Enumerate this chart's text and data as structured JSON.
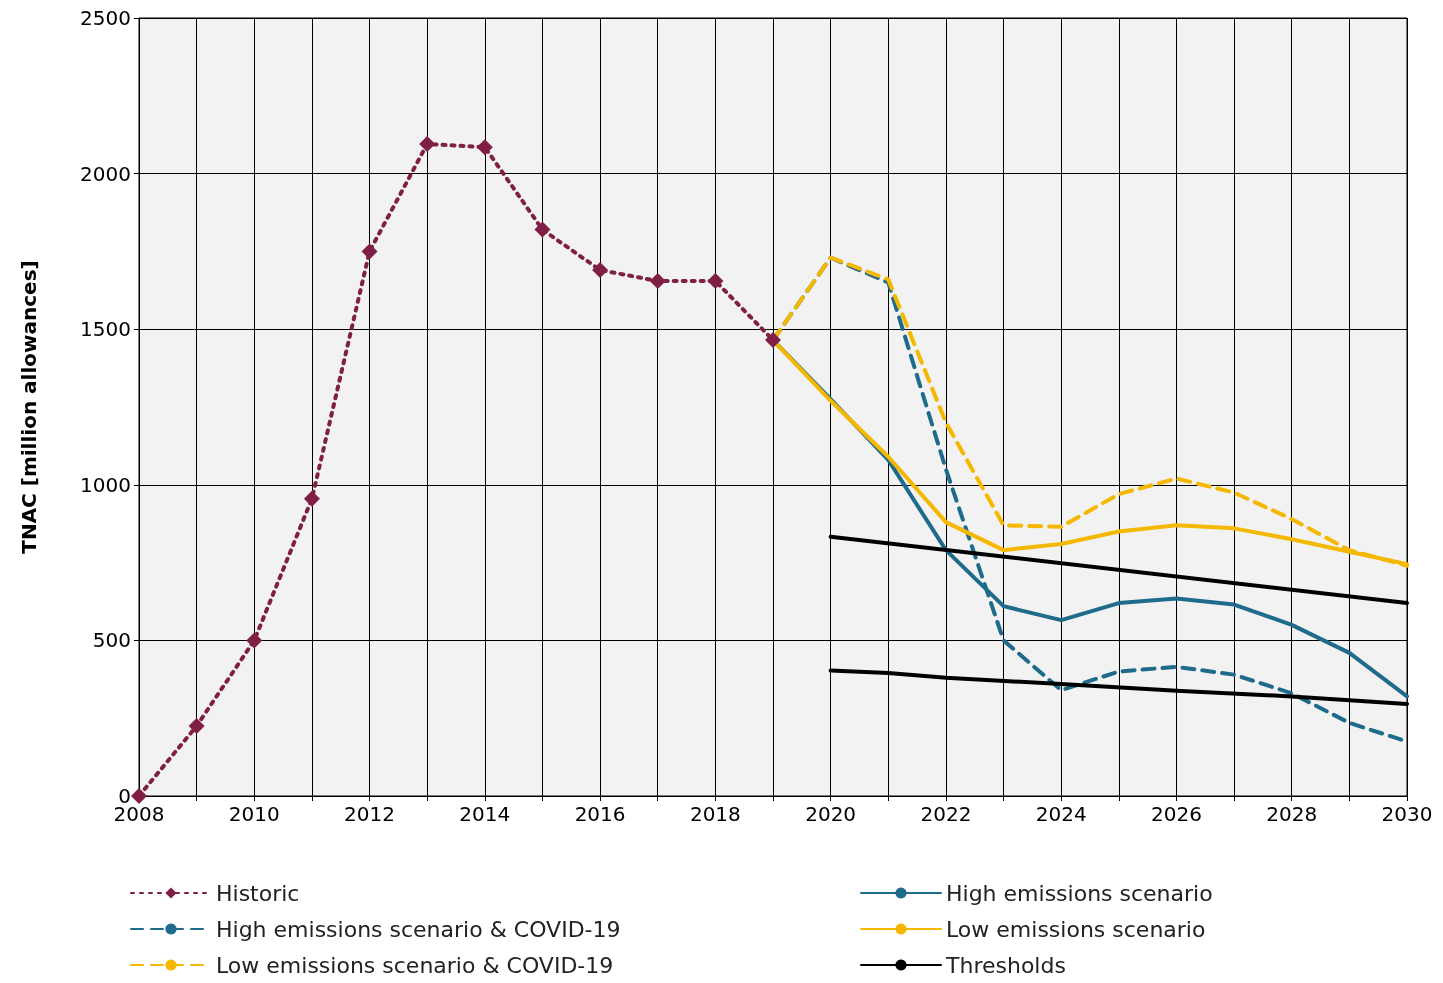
{
  "chart_data": {
    "type": "line",
    "ylabel": "TNAC [million allowances]",
    "xlim": [
      2008,
      2030
    ],
    "ylim": [
      0,
      2500
    ],
    "xticks": [
      2008,
      {
        "value": 2009,
        "label": null
      },
      2010,
      {
        "value": 2011,
        "label": null
      },
      2012,
      {
        "value": 2013,
        "label": null
      },
      2014,
      {
        "value": 2015,
        "label": null
      },
      2016,
      {
        "value": 2017,
        "label": null
      },
      2018,
      {
        "value": 2019,
        "label": null
      },
      2020,
      {
        "value": 2021,
        "label": null
      },
      2022,
      {
        "value": 2023,
        "label": null
      },
      2024,
      {
        "value": 2025,
        "label": null
      },
      2026,
      {
        "value": 2027,
        "label": null
      },
      2028,
      {
        "value": 2029,
        "label": null
      },
      2030
    ],
    "yticks": [
      0,
      500,
      1000,
      1500,
      2000,
      2500
    ],
    "grid": true,
    "legend": "bottom",
    "marker": "none",
    "line_style": "solid",
    "series": [
      {
        "name": "Historic",
        "color": "#7f1f45",
        "marker": "diamond",
        "line_style": "dotted",
        "x": [
          2008,
          2009,
          2010,
          2011,
          2012,
          2013,
          2014,
          2015,
          2016,
          2017,
          2018,
          2019
        ],
        "values": [
          0,
          225,
          500,
          955,
          1750,
          2095,
          2085,
          1820,
          1690,
          1655,
          1655,
          1465
        ]
      },
      {
        "name": "High emissions scenario",
        "color": "#1f6b8c",
        "x": [
          2019,
          2020,
          2021,
          2022,
          2023,
          2024,
          2025,
          2026,
          2027,
          2028,
          2029,
          2030
        ],
        "values": [
          1465,
          1275,
          1080,
          790,
          610,
          565,
          620,
          635,
          615,
          550,
          460,
          320
        ]
      },
      {
        "name": "High emissions scenario & COVID-19",
        "color": "#1f6b8c",
        "line_style": "dashed",
        "x": [
          2019,
          2020,
          2021,
          2022,
          2023,
          2024,
          2025,
          2026,
          2027,
          2028,
          2029,
          2030
        ],
        "values": [
          1465,
          1730,
          1650,
          1050,
          500,
          340,
          400,
          415,
          390,
          330,
          235,
          175
        ]
      },
      {
        "name": "Low emissions scenario",
        "color": "#f5b800",
        "x": [
          2019,
          2020,
          2021,
          2022,
          2023,
          2024,
          2025,
          2026,
          2027,
          2028,
          2029,
          2030
        ],
        "values": [
          1465,
          1270,
          1090,
          880,
          790,
          810,
          850,
          870,
          860,
          825,
          785,
          745
        ]
      },
      {
        "name": "Low emissions scenario & COVID-19",
        "color": "#f5b800",
        "line_style": "dashed",
        "x": [
          2019,
          2020,
          2021,
          2022,
          2023,
          2024,
          2025,
          2026,
          2027,
          2028,
          2029,
          2030
        ],
        "values": [
          1465,
          1730,
          1660,
          1200,
          870,
          865,
          970,
          1020,
          975,
          890,
          790,
          740
        ]
      },
      {
        "name": "Thresholds",
        "color": "#000000",
        "x": [
          2020,
          2030
        ],
        "values": [
          833,
          620
        ]
      },
      {
        "color": "#000000",
        "x": [
          2020,
          2021,
          2022,
          2024,
          2026,
          2028,
          2030
        ],
        "values": [
          403,
          395,
          380,
          360,
          338,
          320,
          296
        ]
      }
    ]
  }
}
